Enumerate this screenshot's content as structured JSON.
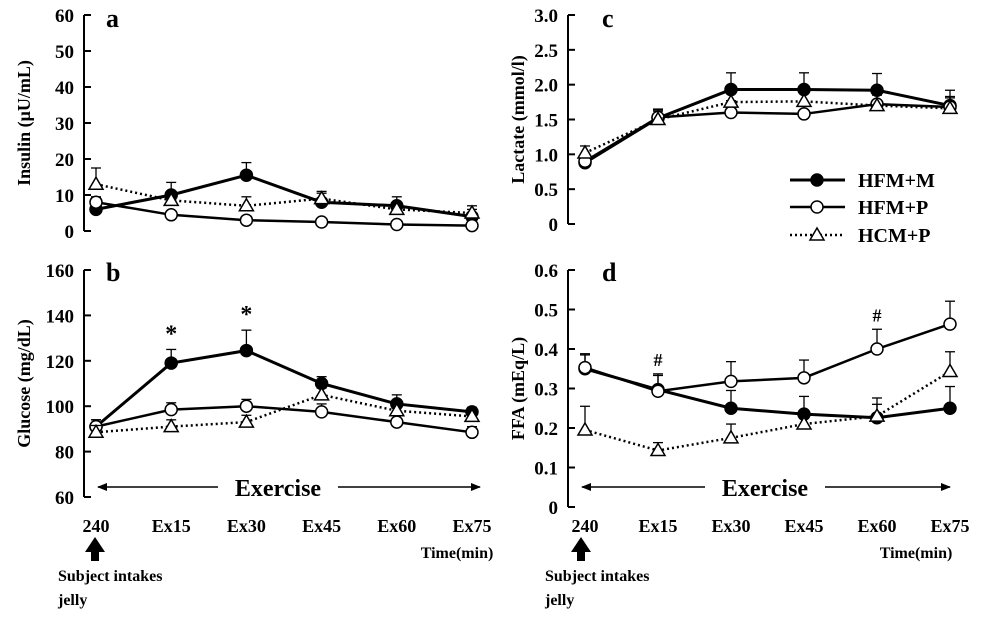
{
  "legend": [
    {
      "key": "hfm_m",
      "label": "HFM+M",
      "marker": "filled-circle",
      "line": "solid"
    },
    {
      "key": "hfm_p",
      "label": "HFM+P",
      "marker": "open-circle",
      "line": "solid"
    },
    {
      "key": "hcm_p",
      "label": "HCM+P",
      "marker": "open-triangle",
      "line": "dotted"
    }
  ],
  "annotations": {
    "exercise_label": "Exercise",
    "time_label": "Time(min)",
    "intake_line1": "Subject intakes",
    "intake_line2": "jelly"
  },
  "chart_data": [
    {
      "id": "a",
      "letter": "a",
      "type": "line",
      "ylabel": "Insulin (μU/mL)",
      "ylim": [
        0,
        60
      ],
      "yticks": [
        0,
        10,
        20,
        30,
        40,
        50,
        60
      ],
      "categories": [
        "240",
        "Ex15",
        "Ex30",
        "Ex45",
        "Ex60",
        "Ex75"
      ],
      "show_xticks": false,
      "series": [
        {
          "key": "hfm_m",
          "name": "HFM+M",
          "values": [
            6,
            10,
            15.5,
            8,
            7,
            4
          ],
          "err": [
            2,
            3.5,
            3.5,
            2.5,
            2.5,
            2
          ]
        },
        {
          "key": "hfm_p",
          "name": "HFM+P",
          "values": [
            8,
            4.5,
            3,
            2.5,
            1.8,
            1.5
          ],
          "err": [
            1.5,
            1,
            0.8,
            0.6,
            0.5,
            0.5
          ]
        },
        {
          "key": "hcm_p",
          "name": "HCM+P",
          "values": [
            13,
            8.5,
            7,
            9,
            6,
            5
          ],
          "err": [
            4.5,
            2.5,
            2.5,
            2,
            2,
            2
          ]
        }
      ],
      "sig": []
    },
    {
      "id": "b",
      "letter": "b",
      "type": "line",
      "ylabel": "Glucose (mg/dL)",
      "ylim": [
        60,
        160
      ],
      "yticks": [
        60,
        80,
        100,
        120,
        140,
        160
      ],
      "categories": [
        "240",
        "Ex15",
        "Ex30",
        "Ex45",
        "Ex60",
        "Ex75"
      ],
      "show_xticks": true,
      "series": [
        {
          "key": "hfm_m",
          "name": "HFM+M",
          "values": [
            91,
            119,
            124.5,
            110,
            101,
            97.5
          ],
          "err": [
            3,
            6,
            9,
            3,
            4,
            2
          ]
        },
        {
          "key": "hfm_p",
          "name": "HFM+P",
          "values": [
            91,
            98.5,
            100,
            97.5,
            93,
            88.5
          ],
          "err": [
            3,
            3,
            3,
            3.5,
            3,
            2.5
          ]
        },
        {
          "key": "hcm_p",
          "name": "HCM+P",
          "values": [
            88.5,
            91,
            93,
            105,
            98,
            95.5
          ],
          "err": [
            3,
            3,
            3,
            3,
            3,
            3
          ]
        }
      ],
      "sig": [
        {
          "index": 1,
          "symbol": "*"
        },
        {
          "index": 2,
          "symbol": "*"
        }
      ]
    },
    {
      "id": "c",
      "letter": "c",
      "type": "line",
      "ylabel": "Lactate (mmol/l)",
      "ylim": [
        0,
        3
      ],
      "yticks": [
        "0",
        "0.5",
        "1.0",
        "1.5",
        "2.0",
        "2.5",
        "3.0"
      ],
      "categories": [
        "240",
        "Ex15",
        "Ex30",
        "Ex45",
        "Ex60",
        "Ex75"
      ],
      "show_xticks": false,
      "series": [
        {
          "key": "hfm_m",
          "name": "HFM+M",
          "values": [
            0.88,
            1.52,
            1.93,
            1.93,
            1.92,
            1.7
          ],
          "err": [
            0.1,
            0.12,
            0.24,
            0.24,
            0.24,
            0.22
          ]
        },
        {
          "key": "hfm_p",
          "name": "HFM+P",
          "values": [
            0.9,
            1.53,
            1.6,
            1.58,
            1.72,
            1.68
          ],
          "err": [
            0.1,
            0.12,
            0.17,
            0.17,
            0.15,
            0.15
          ]
        },
        {
          "key": "hcm_p",
          "name": "HCM+P",
          "values": [
            1.02,
            1.5,
            1.75,
            1.76,
            1.7,
            1.66
          ],
          "err": [
            0.1,
            0.12,
            0.15,
            0.15,
            0.15,
            0.15
          ]
        }
      ],
      "sig": []
    },
    {
      "id": "d",
      "letter": "d",
      "type": "line",
      "ylabel": "FFA (mEq/L)",
      "ylim": [
        0,
        0.6
      ],
      "yticks": [
        "0",
        "0.1",
        "0.2",
        "0.3",
        "0.4",
        "0.5",
        "0.6"
      ],
      "categories": [
        "240",
        "Ex15",
        "Ex30",
        "Ex45",
        "Ex60",
        "Ex75"
      ],
      "show_xticks": true,
      "series": [
        {
          "key": "hfm_m",
          "name": "HFM+M",
          "values": [
            0.35,
            0.297,
            0.25,
            0.235,
            0.226,
            0.25
          ],
          "err": [
            0.035,
            0.04,
            0.045,
            0.045,
            0.05,
            0.055
          ]
        },
        {
          "key": "hfm_p",
          "name": "HFM+P",
          "values": [
            0.353,
            0.293,
            0.318,
            0.327,
            0.4,
            0.463
          ],
          "err": [
            0.035,
            0.04,
            0.05,
            0.045,
            0.05,
            0.058
          ]
        },
        {
          "key": "hcm_p",
          "name": "HCM+P",
          "values": [
            0.195,
            0.143,
            0.175,
            0.21,
            0.23,
            0.343
          ],
          "err": [
            0.06,
            0.02,
            0.035,
            0.03,
            0.03,
            0.05
          ]
        }
      ],
      "sig": [
        {
          "index": 1,
          "symbol": "#"
        },
        {
          "index": 4,
          "symbol": "#"
        }
      ]
    }
  ]
}
